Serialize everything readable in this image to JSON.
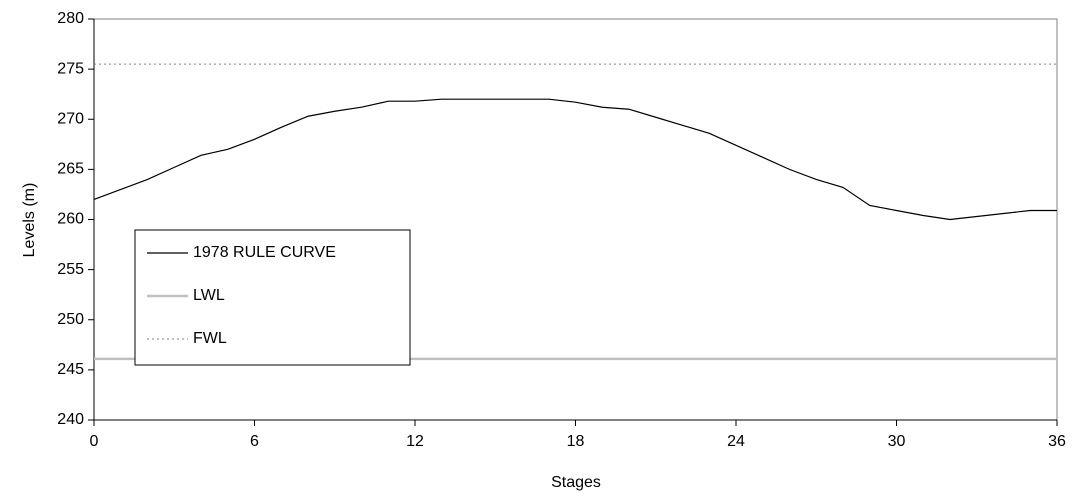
{
  "chart_data": {
    "type": "line",
    "xlabel": "Stages",
    "ylabel": "Levels (m)",
    "xlim": [
      0,
      36
    ],
    "xticks": [
      0,
      6,
      12,
      18,
      24,
      30,
      36
    ],
    "ylim": [
      240,
      280
    ],
    "yticks": [
      240,
      245,
      250,
      255,
      260,
      265,
      270,
      275,
      280
    ],
    "grid": false,
    "legend": "left",
    "series": [
      {
        "name": "1978 RULE CURVE",
        "color": "#000000",
        "style": "solid",
        "x": [
          0,
          1,
          2,
          3,
          4,
          5,
          6,
          7,
          8,
          9,
          10,
          11,
          12,
          13,
          14,
          15,
          16,
          17,
          18,
          19,
          20,
          21,
          22,
          23,
          24,
          25,
          26,
          27,
          28,
          29,
          30,
          31,
          32,
          33,
          34,
          35,
          36
        ],
        "values": [
          262,
          263,
          264,
          265.2,
          266.4,
          267,
          268,
          269.2,
          270.3,
          270.8,
          271.2,
          271.8,
          271.8,
          272,
          272,
          272,
          272,
          272,
          271.7,
          271.2,
          271,
          270.2,
          269.4,
          268.6,
          267.4,
          266.2,
          265,
          264,
          263.2,
          261.4,
          260.9,
          260.4,
          260,
          260.3,
          260.6,
          260.9,
          260.9
        ]
      },
      {
        "name": "LWL",
        "color": "#c0c0c0",
        "style": "solid",
        "x": [
          0,
          36
        ],
        "values": [
          246.1,
          246.1
        ]
      },
      {
        "name": "FWL",
        "color": "#808080",
        "style": "dotted",
        "x": [
          0,
          36
        ],
        "values": [
          275.5,
          275.5
        ]
      }
    ]
  }
}
